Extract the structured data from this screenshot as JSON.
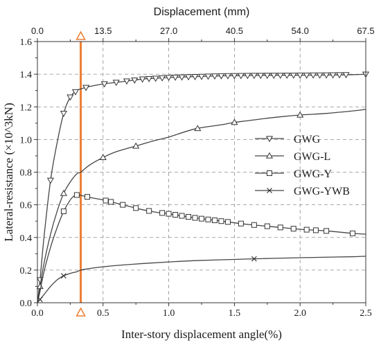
{
  "chart_data": {
    "type": "line",
    "xlabel": "Inter-story displacement angle(%)",
    "ylabel": "Lateral-resistance (×10^3kN)",
    "x2label": "Displacement (mm)",
    "xlim": [
      0,
      2.5
    ],
    "ylim": [
      0,
      1.6
    ],
    "x2lim": [
      0,
      67.5
    ],
    "xticks": [
      "0.0",
      "0.5",
      "1.0",
      "1.5",
      "2.0",
      "2.5"
    ],
    "yticks": [
      "0.0",
      "0.2",
      "0.4",
      "0.6",
      "0.8",
      "1.0",
      "1.2",
      "1.4",
      "1.6"
    ],
    "x2ticks": [
      "0.0",
      "13.5",
      "27.0",
      "40.5",
      "54.0",
      "67.5"
    ],
    "grid": true,
    "legend_position": "right",
    "reference_line": {
      "x": 0.33,
      "color": "#ED7D31"
    },
    "series": [
      {
        "name": "GWG",
        "marker": "triangle-down",
        "x": [
          0,
          0.02,
          0.05,
          0.1,
          0.15,
          0.2,
          0.25,
          0.3,
          0.33,
          0.4,
          0.5,
          0.6,
          0.7,
          0.8,
          0.9,
          1.0,
          1.2,
          1.4,
          1.6,
          1.8,
          2.0,
          2.2,
          2.4,
          2.5
        ],
        "y": [
          0,
          0.14,
          0.4,
          0.75,
          0.98,
          1.16,
          1.26,
          1.3,
          1.31,
          1.325,
          1.34,
          1.35,
          1.36,
          1.37,
          1.375,
          1.38,
          1.385,
          1.39,
          1.392,
          1.393,
          1.394,
          1.395,
          1.397,
          1.4
        ],
        "marker_x": [
          0.02,
          0.1,
          0.2,
          0.25,
          0.29,
          0.37,
          0.51,
          0.6,
          0.68,
          0.74,
          0.8,
          0.85,
          0.9,
          0.95,
          1.0,
          1.05,
          1.1,
          1.15,
          1.2,
          1.25,
          1.3,
          1.35,
          1.4,
          1.45,
          1.5,
          1.55,
          1.6,
          1.65,
          1.7,
          1.75,
          1.8,
          1.85,
          1.9,
          1.95,
          2.0,
          2.05,
          2.1,
          2.15,
          2.2,
          2.25,
          2.3,
          2.35,
          2.5
        ]
      },
      {
        "name": "GWG-L",
        "marker": "triangle-up",
        "x": [
          0,
          0.02,
          0.05,
          0.1,
          0.15,
          0.2,
          0.25,
          0.3,
          0.33,
          0.4,
          0.5,
          0.6,
          0.75,
          0.9,
          1.0,
          1.2,
          1.4,
          1.5,
          1.6,
          1.8,
          2.0,
          2.2,
          2.4,
          2.5
        ],
        "y": [
          0,
          0.1,
          0.24,
          0.42,
          0.56,
          0.67,
          0.74,
          0.79,
          0.8,
          0.845,
          0.89,
          0.925,
          0.96,
          0.995,
          1.015,
          1.065,
          1.09,
          1.105,
          1.115,
          1.135,
          1.15,
          1.16,
          1.175,
          1.185
        ],
        "marker_x": [
          0.02,
          0.2,
          0.5,
          0.75,
          1.22,
          1.5,
          2.0
        ]
      },
      {
        "name": "GWG-Y",
        "marker": "square",
        "x": [
          0,
          0.02,
          0.05,
          0.1,
          0.15,
          0.2,
          0.25,
          0.28,
          0.3,
          0.33,
          0.4,
          0.5,
          0.6,
          0.7,
          0.8,
          0.9,
          1.0,
          1.2,
          1.4,
          1.6,
          1.8,
          2.0,
          2.2,
          2.4,
          2.5
        ],
        "y": [
          0,
          0.07,
          0.19,
          0.34,
          0.46,
          0.56,
          0.63,
          0.655,
          0.66,
          0.658,
          0.645,
          0.63,
          0.61,
          0.59,
          0.57,
          0.555,
          0.545,
          0.52,
          0.5,
          0.48,
          0.465,
          0.45,
          0.44,
          0.425,
          0.42
        ],
        "marker_x": [
          0.2,
          0.3,
          0.38,
          0.52,
          0.56,
          0.65,
          0.75,
          0.85,
          0.95,
          1.0,
          1.05,
          1.1,
          1.15,
          1.2,
          1.25,
          1.3,
          1.35,
          1.4,
          1.45,
          1.55,
          1.65,
          1.75,
          1.85,
          1.95,
          2.05,
          2.12,
          2.2,
          2.4
        ]
      },
      {
        "name": "GWG-YWB",
        "marker": "x",
        "x": [
          0,
          0.02,
          0.05,
          0.1,
          0.15,
          0.2,
          0.25,
          0.3,
          0.33,
          0.4,
          0.5,
          0.6,
          0.8,
          1.0,
          1.2,
          1.4,
          1.6,
          1.8,
          2.0,
          2.2,
          2.4,
          2.5
        ],
        "y": [
          0,
          0.02,
          0.05,
          0.1,
          0.14,
          0.165,
          0.18,
          0.19,
          0.2,
          0.21,
          0.22,
          0.228,
          0.24,
          0.25,
          0.258,
          0.263,
          0.268,
          0.272,
          0.276,
          0.279,
          0.282,
          0.285
        ],
        "marker_x": [
          0.02,
          0.2,
          1.65
        ]
      }
    ]
  }
}
